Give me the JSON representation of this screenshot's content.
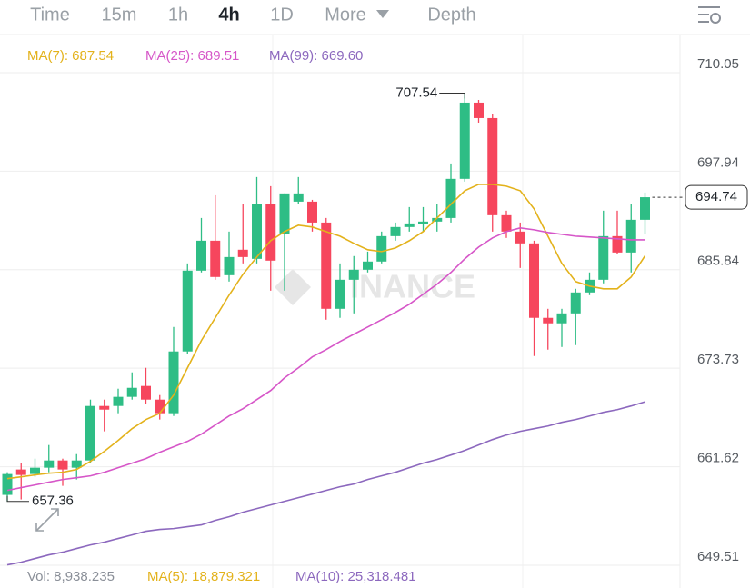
{
  "toolbar": {
    "tabs": [
      "Time",
      "15m",
      "1h",
      "4h",
      "1D",
      "More",
      "Depth"
    ],
    "active": "4h"
  },
  "chart_data": {
    "type": "candlestick",
    "up_color": "#2ebd85",
    "down_color": "#f6465d",
    "open": [
      658.16,
      661.28,
      660.72,
      661.5,
      662.39,
      661.5,
      662.39,
      669.09,
      669.09,
      670.21,
      671.55,
      669.87,
      668.2,
      675.79,
      685.72,
      689.4,
      685.16,
      688.29,
      687.17,
      693.87,
      690.18,
      694.2,
      694.2,
      691.63,
      681.03,
      684.6,
      685.83,
      686.84,
      689.96,
      691.08,
      691.41,
      691.75,
      692.19,
      697.0,
      706.37,
      704.47,
      692.53,
      690.52,
      689.07,
      679.92,
      679.25,
      680.47,
      683.04,
      684.6,
      689.96,
      687.95,
      691.97
    ],
    "high": [
      660.94,
      662.06,
      662.61,
      664.29,
      662.61,
      663.17,
      669.87,
      669.87,
      671.21,
      673.22,
      673.78,
      670.43,
      678.8,
      686.61,
      692.19,
      694.98,
      690.52,
      693.87,
      697.22,
      696.1,
      695.21,
      697.22,
      694.42,
      692.19,
      686.61,
      687.51,
      688.06,
      690.52,
      691.63,
      693.53,
      693.53,
      693.87,
      698.89,
      707.54,
      706.7,
      705.03,
      693.09,
      691.63,
      689.4,
      681.03,
      681.03,
      683.49,
      685.5,
      693.09,
      693.09,
      693.87,
      695.32
    ],
    "low": [
      657.36,
      657.6,
      660.39,
      660.94,
      659.27,
      660.05,
      662.06,
      665.97,
      668.2,
      669.87,
      669.31,
      667.42,
      667.86,
      675.45,
      685.5,
      684.6,
      684.38,
      686.61,
      686.61,
      683.26,
      683.26,
      693.87,
      690.52,
      679.69,
      679.92,
      680.47,
      685.5,
      686.61,
      689.4,
      690.52,
      690.52,
      690.52,
      691.63,
      696.66,
      703.91,
      690.52,
      689.74,
      686.05,
      675.23,
      676.01,
      676.34,
      676.57,
      682.71,
      684.16,
      687.73,
      685.5,
      690.18
    ],
    "close": [
      660.72,
      660.61,
      661.5,
      662.39,
      661.28,
      662.39,
      669.09,
      668.64,
      670.21,
      671.32,
      669.87,
      668.2,
      675.79,
      685.72,
      689.4,
      684.94,
      687.39,
      687.39,
      693.87,
      686.95,
      695.21,
      695.21,
      691.63,
      681.03,
      684.6,
      685.83,
      686.84,
      689.96,
      691.08,
      691.52,
      691.75,
      692.19,
      697.0,
      706.37,
      704.47,
      692.53,
      690.52,
      689.07,
      679.92,
      679.25,
      680.47,
      683.04,
      684.6,
      689.96,
      687.95,
      691.97,
      694.74
    ],
    "series": [
      {
        "name": "MA(7): 687.54",
        "color": "#e3b21b",
        "values": [
          660.16,
          660.38,
          660.61,
          660.83,
          660.94,
          661.28,
          662.28,
          663.51,
          664.85,
          666.3,
          667.42,
          668.2,
          670.43,
          673.78,
          677.13,
          679.92,
          682.71,
          685.27,
          687.39,
          689.4,
          690.52,
          691.3,
          691.08,
          690.52,
          689.96,
          689.07,
          688.29,
          688.06,
          688.51,
          689.4,
          690.52,
          692.19,
          693.87,
          695.54,
          696.32,
          696.32,
          696.1,
          695.54,
          693.31,
          689.96,
          686.61,
          684.38,
          683.82,
          683.49,
          683.49,
          684.94,
          687.54
        ]
      },
      {
        "name": "MA(25): 689.51",
        "color": "#d656c8",
        "values": [
          658.71,
          659.05,
          659.38,
          659.72,
          660.05,
          660.27,
          660.5,
          660.94,
          661.5,
          662.06,
          662.62,
          663.4,
          664.07,
          664.74,
          665.63,
          666.75,
          667.86,
          668.76,
          669.87,
          670.99,
          672.55,
          673.78,
          675.12,
          676.02,
          677.01,
          677.91,
          678.8,
          679.69,
          680.59,
          681.59,
          682.82,
          684.05,
          685.5,
          687.17,
          688.62,
          689.74,
          690.52,
          690.97,
          690.74,
          690.41,
          690.18,
          689.96,
          689.85,
          689.74,
          689.63,
          689.51,
          689.51
        ]
      },
      {
        "name": "MA(99): 669.60",
        "color": "#8c68be",
        "values": [
          649.56,
          649.89,
          650.34,
          650.79,
          651.12,
          651.57,
          652.01,
          652.35,
          652.8,
          653.24,
          653.69,
          653.91,
          654.02,
          654.25,
          654.47,
          655.03,
          655.47,
          656.03,
          656.48,
          656.92,
          657.37,
          657.82,
          658.26,
          658.71,
          659.16,
          659.49,
          660.05,
          660.5,
          660.94,
          661.5,
          662.06,
          662.51,
          663.06,
          663.62,
          664.29,
          664.96,
          665.52,
          665.97,
          666.3,
          666.63,
          667.08,
          667.42,
          667.86,
          668.31,
          668.64,
          669.09,
          669.6
        ]
      }
    ],
    "ylim": [
      649.51,
      710.05
    ],
    "yticks": [
      649.51,
      661.62,
      673.73,
      685.84,
      697.94,
      710.05
    ],
    "grid": true,
    "annotations": {
      "high": 707.54,
      "low": 657.36,
      "last": 694.74
    },
    "watermark": "INANCE"
  },
  "volume_legend": [
    {
      "text": "Vol: 8,938.235",
      "color": "#8a8f98"
    },
    {
      "text": "MA(5): 18,879.321",
      "color": "#e3b21b"
    },
    {
      "text": "MA(10): 25,318.481",
      "color": "#8c68be"
    }
  ]
}
